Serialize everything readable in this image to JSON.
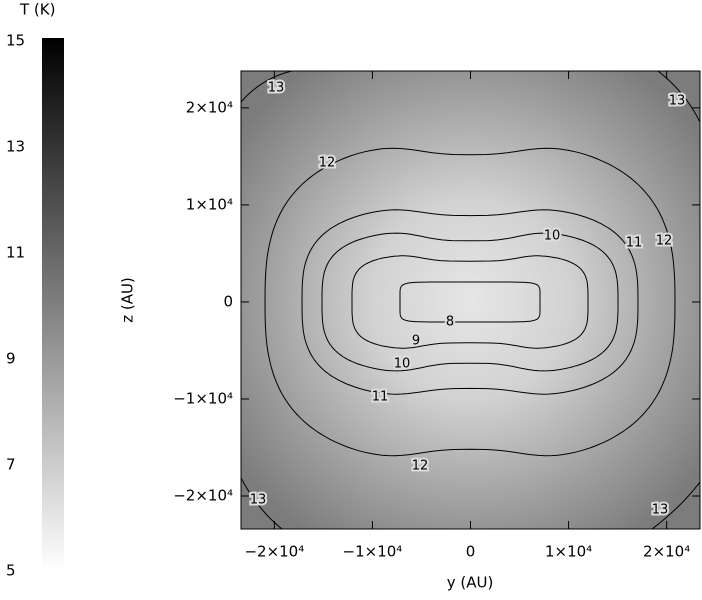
{
  "chart_data": {
    "type": "contour",
    "xlabel": "y (AU)",
    "ylabel": "z (AU)",
    "xlim": [
      -23400,
      23400
    ],
    "ylim": [
      -23400,
      23800
    ],
    "xticks": [
      {
        "value": -20000,
        "label": "−2×10⁴"
      },
      {
        "value": -10000,
        "label": "−1×10⁴"
      },
      0,
      {
        "value": 10000,
        "label": "1×10⁴"
      },
      {
        "value": 20000,
        "label": "2×10⁴"
      }
    ],
    "yticks": [
      {
        "value": -20000,
        "label": "−2×10⁴"
      },
      {
        "value": -10000,
        "label": "−1×10⁴"
      },
      0,
      {
        "value": 10000,
        "label": "1×10⁴"
      },
      {
        "value": 20000,
        "label": "2×10⁴"
      }
    ],
    "levels": [
      8,
      9,
      10,
      11,
      12,
      13
    ],
    "colorbar": {
      "title": "T (K)",
      "lim": [
        5,
        15
      ],
      "ticks": [
        5,
        7,
        9,
        11,
        13,
        15
      ]
    }
  }
}
